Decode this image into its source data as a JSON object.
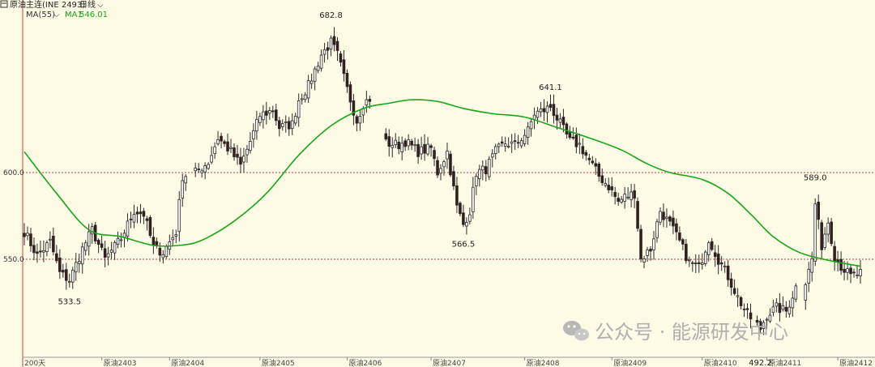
{
  "header": {
    "icon": "window-menu-icon",
    "title": "原油主连(INE 2493)",
    "period": "日线",
    "ma_indicator": "MA(55)",
    "ma_series": "MA1",
    "ma_value": "546.01"
  },
  "footer_label": "200天",
  "watermark": "公众号 · 能源研发中心",
  "colors": {
    "background": "#fdfbe6",
    "up_candle": "#ffffff",
    "down_candle": "#3a1a1a",
    "ma_line": "#19a619",
    "ref_line": "#c04040"
  },
  "chart_data": {
    "type": "candlestick",
    "title": "原油主连(INE 2493)",
    "ylim": [
      490,
      700
    ],
    "y_ticks": [
      600,
      550
    ],
    "reference_lines": [
      600,
      550
    ],
    "x_ticks": [
      "原油2403",
      "原油2404",
      "原油2405",
      "原油2406",
      "原油2407",
      "原油2408",
      "原油2409",
      "原油2410",
      "原油2411",
      "原油2412"
    ],
    "x_tick_index": [
      24,
      45,
      73,
      100,
      126,
      155,
      182,
      210,
      230,
      252
    ],
    "annotations": [
      {
        "text": "533.5",
        "index": 14,
        "value": 533.5,
        "pos": "below"
      },
      {
        "text": "682.8",
        "index": 95,
        "value": 682.8,
        "pos": "above"
      },
      {
        "text": "566.5",
        "index": 136,
        "value": 566.5,
        "pos": "below"
      },
      {
        "text": "641.1",
        "index": 163,
        "value": 641.1,
        "pos": "above"
      },
      {
        "text": "492.2",
        "index": 228,
        "value": 492.2,
        "pos": "below"
      },
      {
        "text": "589.0",
        "index": 245,
        "value": 589.0,
        "pos": "above"
      }
    ],
    "anchors": [
      [
        0,
        566
      ],
      [
        4,
        552
      ],
      [
        8,
        560
      ],
      [
        11,
        542
      ],
      [
        14,
        538
      ],
      [
        18,
        556
      ],
      [
        21,
        567
      ],
      [
        25,
        550
      ],
      [
        30,
        562
      ],
      [
        34,
        578
      ],
      [
        37,
        576
      ],
      [
        40,
        557
      ],
      [
        43,
        554
      ],
      [
        47,
        566
      ],
      [
        49,
        598
      ],
      [
        53,
        600
      ],
      [
        57,
        606
      ],
      [
        60,
        620
      ],
      [
        64,
        612
      ],
      [
        67,
        604
      ],
      [
        70,
        618
      ],
      [
        73,
        633
      ],
      [
        77,
        636
      ],
      [
        79,
        626
      ],
      [
        83,
        628
      ],
      [
        85,
        642
      ],
      [
        88,
        650
      ],
      [
        92,
        668
      ],
      [
        95,
        675
      ],
      [
        97,
        668
      ],
      [
        100,
        648
      ],
      [
        103,
        630
      ],
      [
        105,
        640
      ],
      [
        108,
        644
      ],
      [
        112,
        617
      ],
      [
        116,
        616
      ],
      [
        118,
        618
      ],
      [
        122,
        612
      ],
      [
        126,
        614
      ],
      [
        128,
        600
      ],
      [
        131,
        612
      ],
      [
        134,
        580
      ],
      [
        136,
        570
      ],
      [
        138,
        578
      ],
      [
        140,
        600
      ],
      [
        143,
        602
      ],
      [
        146,
        612
      ],
      [
        149,
        617
      ],
      [
        152,
        616
      ],
      [
        156,
        624
      ],
      [
        158,
        634
      ],
      [
        161,
        636
      ],
      [
        163,
        638
      ],
      [
        166,
        628
      ],
      [
        169,
        618
      ],
      [
        172,
        616
      ],
      [
        174,
        610
      ],
      [
        178,
        598
      ],
      [
        181,
        592
      ],
      [
        184,
        583
      ],
      [
        186,
        586
      ],
      [
        189,
        588
      ],
      [
        191,
        550
      ],
      [
        194,
        556
      ],
      [
        197,
        578
      ],
      [
        200,
        570
      ],
      [
        203,
        560
      ],
      [
        206,
        548
      ],
      [
        209,
        545
      ],
      [
        212,
        562
      ],
      [
        215,
        550
      ],
      [
        218,
        540
      ],
      [
        221,
        528
      ],
      [
        224,
        518
      ],
      [
        226,
        514
      ],
      [
        228,
        510
      ],
      [
        230,
        518
      ],
      [
        233,
        522
      ],
      [
        236,
        520
      ],
      [
        239,
        534
      ],
      [
        241,
        530
      ],
      [
        244,
        550
      ],
      [
        245,
        582
      ],
      [
        247,
        558
      ],
      [
        249,
        572
      ],
      [
        251,
        552
      ],
      [
        253,
        546
      ],
      [
        256,
        540
      ],
      [
        259,
        542
      ]
    ],
    "candle_count": 260,
    "ma_series": {
      "name": "MA1",
      "period": 55,
      "points": [
        [
          0,
          612
        ],
        [
          10,
          588
        ],
        [
          20,
          567
        ],
        [
          30,
          563
        ],
        [
          40,
          558
        ],
        [
          48,
          558
        ],
        [
          55,
          561
        ],
        [
          65,
          572
        ],
        [
          75,
          588
        ],
        [
          85,
          610
        ],
        [
          95,
          627
        ],
        [
          105,
          637
        ],
        [
          113,
          640
        ],
        [
          120,
          642
        ],
        [
          128,
          641
        ],
        [
          136,
          637
        ],
        [
          145,
          634
        ],
        [
          155,
          632
        ],
        [
          165,
          626
        ],
        [
          175,
          620
        ],
        [
          185,
          613
        ],
        [
          193,
          605
        ],
        [
          200,
          600
        ],
        [
          210,
          596
        ],
        [
          218,
          588
        ],
        [
          225,
          576
        ],
        [
          232,
          563
        ],
        [
          240,
          554
        ],
        [
          250,
          549
        ],
        [
          259,
          546
        ]
      ]
    }
  }
}
